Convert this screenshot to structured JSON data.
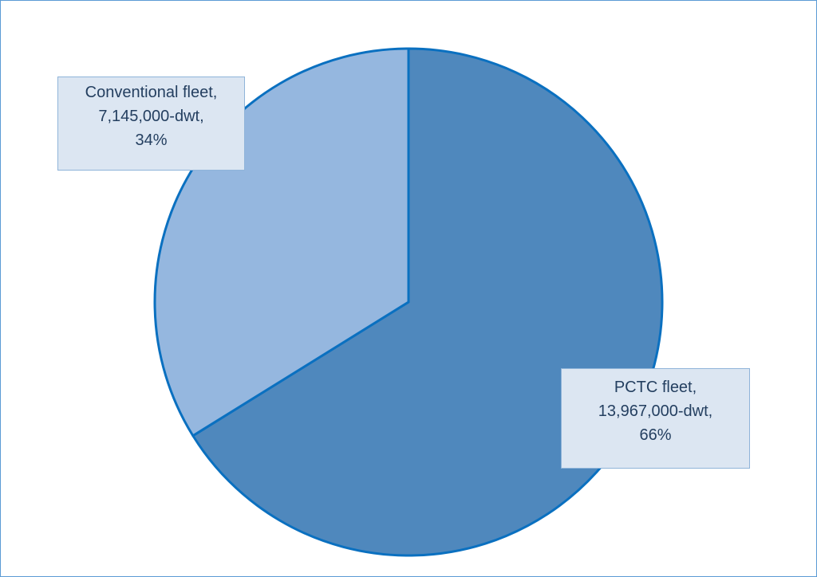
{
  "chart_data": {
    "type": "pie",
    "title": "",
    "slices": [
      {
        "name": "PCTC fleet",
        "value": 13967000,
        "percent": 66,
        "label_line1": "PCTC fleet,",
        "label_line2": "13,967,000-dwt,",
        "label_line3": "66%",
        "color": "#4f88bd"
      },
      {
        "name": "Conventional fleet",
        "value": 7145000,
        "percent": 34,
        "label_line1": "Conventional fleet,",
        "label_line2": "7,145,000-dwt,",
        "label_line3": "34%",
        "color": "#95b7df"
      }
    ],
    "start_angle": "12 o'clock, clockwise",
    "outline_color": "#0a70c0",
    "label_background": "#dce6f2",
    "label_border": "#8fb4d9",
    "legend": "none"
  }
}
